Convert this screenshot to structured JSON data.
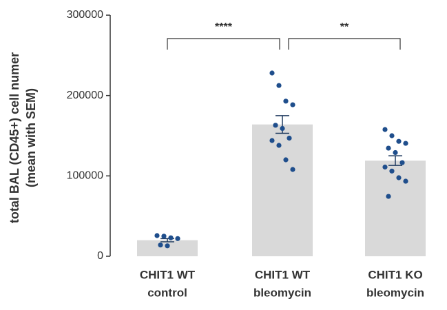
{
  "chart_data": {
    "type": "bar",
    "ylabel": [
      "total BAL (CD45+) cell numer",
      "(mean with SEM)"
    ],
    "categories": [
      [
        "CHIT1 WT",
        "control"
      ],
      [
        "CHIT1 WT",
        "bleomycin"
      ],
      [
        "CHIT1 KO",
        "bleomycin"
      ]
    ],
    "values": [
      20000,
      164000,
      119000
    ],
    "errors": [
      2000,
      11000,
      6000
    ],
    "points": [
      [
        25700,
        25000,
        23000,
        22000,
        14000,
        13000
      ],
      [
        228000,
        212500,
        193000,
        188500,
        163000,
        159000,
        147000,
        144000,
        138000,
        120000,
        108000
      ],
      [
        157700,
        150000,
        143000,
        140500,
        134500,
        129000,
        116500,
        111000,
        106000,
        97700,
        93400,
        74500
      ]
    ],
    "annotations": [
      "****",
      "**"
    ],
    "color": "#d9d9d9",
    "point_color": "#1f4e8c",
    "ylim": [
      0,
      300000
    ],
    "yticks": [
      0,
      100000,
      200000,
      300000
    ]
  }
}
